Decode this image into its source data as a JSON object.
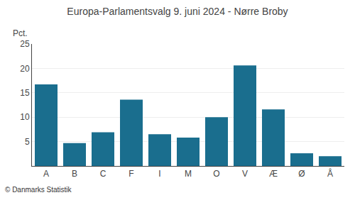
{
  "chart_data": {
    "type": "bar",
    "title": "Europa-Parlamentsvalg 9. juni 2024 - Nørre Broby",
    "ylabel": "Pct.",
    "annotations": [
      "© Danmarks Statistik"
    ],
    "categories": [
      "A",
      "B",
      "C",
      "F",
      "I",
      "M",
      "O",
      "V",
      "Æ",
      "Ø",
      "Å"
    ],
    "values": [
      16.7,
      4.7,
      6.9,
      13.6,
      6.5,
      5.8,
      10.0,
      20.6,
      11.6,
      2.6,
      2.0
    ],
    "color": "#1a6e8e",
    "ylim": [
      0,
      25
    ],
    "yticks": [
      5,
      10,
      15,
      20,
      25
    ],
    "grid": true
  }
}
